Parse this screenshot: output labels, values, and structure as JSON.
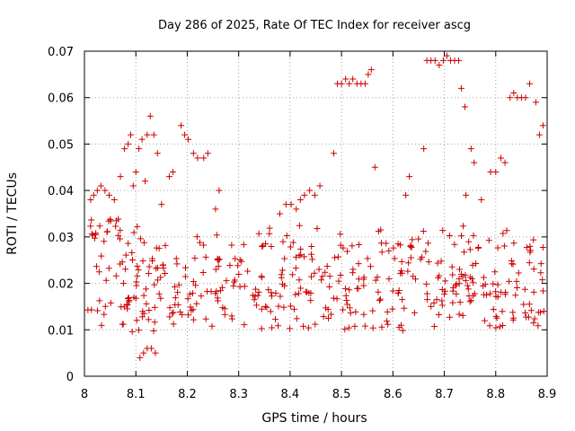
{
  "chart_data": {
    "type": "scatter",
    "title": "Day 286 of 2025, Rate Of TEC Index for receiver ascg",
    "xlabel": "GPS time / hours",
    "ylabel": "ROTI / TECUs",
    "xlim": [
      8.0,
      8.9
    ],
    "ylim": [
      0,
      0.07
    ],
    "x_ticks": [
      "8",
      "8.1",
      "8.2",
      "8.3",
      "8.4",
      "8.5",
      "8.6",
      "8.7",
      "8.8",
      "8.9"
    ],
    "y_ticks": [
      "0",
      "0.01",
      "0.02",
      "0.03",
      "0.04",
      "0.05",
      "0.06",
      "0.07"
    ],
    "grid": true,
    "marker": "+",
    "color": "#cc0000",
    "series": [
      {
        "name": "ascg",
        "points": [
          [
            8.012,
            0.038
          ],
          [
            8.018,
            0.039
          ],
          [
            8.025,
            0.04
          ],
          [
            8.032,
            0.041
          ],
          [
            8.04,
            0.04
          ],
          [
            8.048,
            0.039
          ],
          [
            8.058,
            0.038
          ],
          [
            8.07,
            0.043
          ],
          [
            8.078,
            0.049
          ],
          [
            8.085,
            0.05
          ],
          [
            8.09,
            0.052
          ],
          [
            8.095,
            0.041
          ],
          [
            8.1,
            0.044
          ],
          [
            8.106,
            0.049
          ],
          [
            8.112,
            0.051
          ],
          [
            8.118,
            0.042
          ],
          [
            8.122,
            0.052
          ],
          [
            8.128,
            0.056
          ],
          [
            8.135,
            0.052
          ],
          [
            8.142,
            0.048
          ],
          [
            8.15,
            0.037
          ],
          [
            8.165,
            0.043
          ],
          [
            8.172,
            0.044
          ],
          [
            8.188,
            0.054
          ],
          [
            8.195,
            0.052
          ],
          [
            8.202,
            0.051
          ],
          [
            8.212,
            0.048
          ],
          [
            8.22,
            0.047
          ],
          [
            8.232,
            0.047
          ],
          [
            8.24,
            0.048
          ],
          [
            8.255,
            0.036
          ],
          [
            8.262,
            0.04
          ],
          [
            8.38,
            0.035
          ],
          [
            8.392,
            0.037
          ],
          [
            8.402,
            0.037
          ],
          [
            8.412,
            0.036
          ],
          [
            8.42,
            0.038
          ],
          [
            8.428,
            0.039
          ],
          [
            8.438,
            0.04
          ],
          [
            8.448,
            0.039
          ],
          [
            8.458,
            0.041
          ],
          [
            8.485,
            0.048
          ],
          [
            8.492,
            0.063
          ],
          [
            8.5,
            0.063
          ],
          [
            8.508,
            0.064
          ],
          [
            8.515,
            0.063
          ],
          [
            8.522,
            0.064
          ],
          [
            8.53,
            0.063
          ],
          [
            8.538,
            0.063
          ],
          [
            8.546,
            0.063
          ],
          [
            8.552,
            0.065
          ],
          [
            8.558,
            0.066
          ],
          [
            8.565,
            0.045
          ],
          [
            8.625,
            0.039
          ],
          [
            8.632,
            0.043
          ],
          [
            8.66,
            0.049
          ],
          [
            8.666,
            0.068
          ],
          [
            8.674,
            0.068
          ],
          [
            8.682,
            0.068
          ],
          [
            8.69,
            0.067
          ],
          [
            8.698,
            0.068
          ],
          [
            8.705,
            0.069
          ],
          [
            8.712,
            0.068
          ],
          [
            8.72,
            0.068
          ],
          [
            8.728,
            0.068
          ],
          [
            8.733,
            0.062
          ],
          [
            8.74,
            0.058
          ],
          [
            8.742,
            0.039
          ],
          [
            8.752,
            0.049
          ],
          [
            8.758,
            0.046
          ],
          [
            8.772,
            0.038
          ],
          [
            8.79,
            0.044
          ],
          [
            8.8,
            0.044
          ],
          [
            8.81,
            0.047
          ],
          [
            8.818,
            0.046
          ],
          [
            8.828,
            0.06
          ],
          [
            8.835,
            0.061
          ],
          [
            8.842,
            0.06
          ],
          [
            8.85,
            0.06
          ],
          [
            8.858,
            0.06
          ],
          [
            8.866,
            0.063
          ],
          [
            8.878,
            0.059
          ],
          [
            8.885,
            0.052
          ],
          [
            8.892,
            0.054
          ],
          [
            8.108,
            0.004
          ],
          [
            8.115,
            0.005
          ],
          [
            8.122,
            0.006
          ],
          [
            8.13,
            0.006
          ],
          [
            8.138,
            0.005
          ]
        ]
      }
    ]
  }
}
